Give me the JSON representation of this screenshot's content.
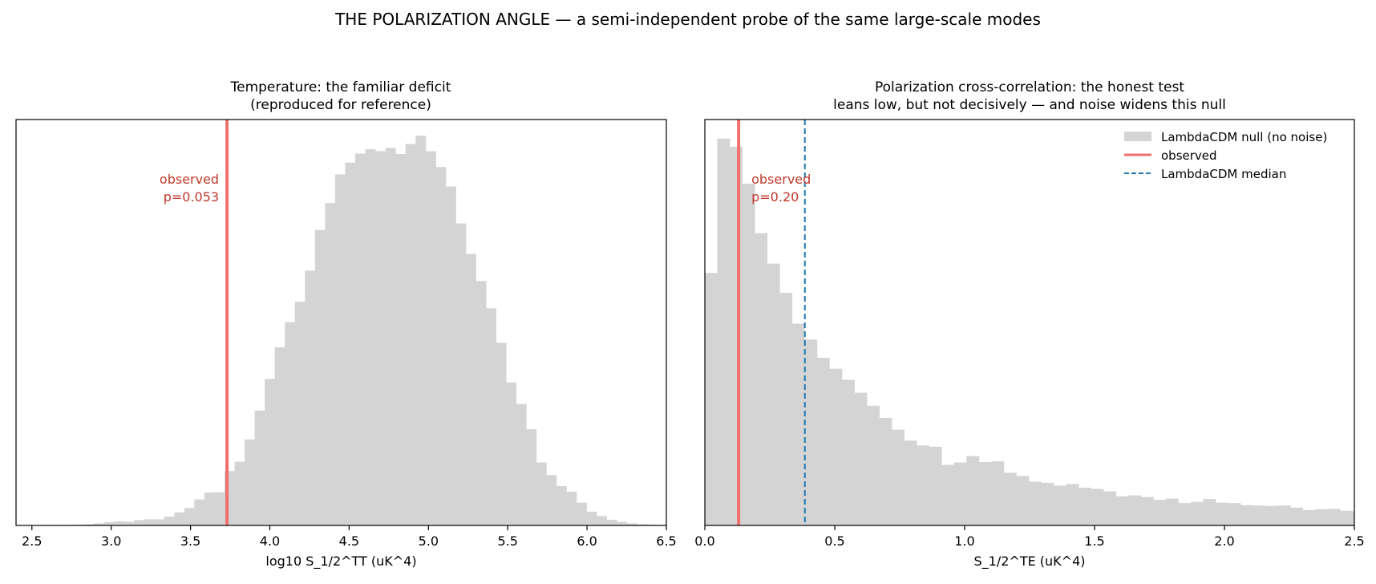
{
  "figure": {
    "suptitle": "THE POLARIZATION ANGLE — a semi-independent probe of the same large-scale modes"
  },
  "colors": {
    "bars": "#d4d4d4",
    "observed": "#f07070",
    "observed_text": "#c0392b",
    "median": "#1f77b4",
    "axes": "#000000"
  },
  "chart_data": [
    {
      "type": "bar",
      "title_lines": [
        "Temperature: the familiar deficit",
        "(reproduced for reference)"
      ],
      "xlabel": "log10 S_1/2^TT (uK^4)",
      "ylabel": "",
      "xlim": [
        2.4,
        6.5
      ],
      "ylim": [
        0,
        1.0
      ],
      "y_ticks_shown": false,
      "xticks": [
        2.5,
        3.0,
        3.5,
        4.0,
        4.5,
        5.0,
        5.5,
        6.0,
        6.5
      ],
      "xtick_labels": [
        "2.5",
        "3.0",
        "3.5",
        "4.0",
        "4.5",
        "5.0",
        "5.5",
        "6.0",
        "6.5"
      ],
      "bin_start": 2.7,
      "bin_width": 0.0634,
      "values": [
        0.001,
        0.002,
        0.003,
        0.005,
        0.008,
        0.01,
        0.009,
        0.013,
        0.015,
        0.015,
        0.022,
        0.032,
        0.043,
        0.064,
        0.081,
        0.082,
        0.134,
        0.157,
        0.212,
        0.283,
        0.361,
        0.439,
        0.501,
        0.551,
        0.628,
        0.728,
        0.794,
        0.865,
        0.894,
        0.916,
        0.927,
        0.922,
        0.93,
        0.915,
        0.94,
        0.96,
        0.922,
        0.883,
        0.835,
        0.744,
        0.669,
        0.602,
        0.535,
        0.45,
        0.352,
        0.299,
        0.237,
        0.155,
        0.124,
        0.097,
        0.083,
        0.056,
        0.034,
        0.023,
        0.014,
        0.009,
        0.005,
        0.003,
        0.002,
        0.001
      ],
      "observed": {
        "x": 3.73,
        "label": "observed",
        "p_label": "p=0.053"
      },
      "show_legend": false
    },
    {
      "type": "bar",
      "title_lines": [
        "Polarization cross-correlation: the honest test",
        "leans low, but not decisively — and noise widens this null"
      ],
      "xlabel": "S_1/2^TE  (uK^4)",
      "ylabel": "",
      "xlim": [
        0.0,
        2.5
      ],
      "ylim": [
        0,
        1.0
      ],
      "y_ticks_shown": false,
      "xticks": [
        0.0,
        0.5,
        1.0,
        1.5,
        2.0,
        2.5
      ],
      "xtick_labels": [
        "0.0",
        "0.5",
        "1.0",
        "1.5",
        "2.0",
        "2.5"
      ],
      "bin_start": 0.0,
      "bin_width": 0.04795,
      "values": [
        0.622,
        0.953,
        0.933,
        0.842,
        0.72,
        0.645,
        0.573,
        0.497,
        0.458,
        0.413,
        0.386,
        0.359,
        0.327,
        0.295,
        0.265,
        0.236,
        0.209,
        0.197,
        0.194,
        0.149,
        0.155,
        0.171,
        0.156,
        0.158,
        0.13,
        0.122,
        0.108,
        0.105,
        0.098,
        0.102,
        0.093,
        0.09,
        0.084,
        0.072,
        0.074,
        0.07,
        0.063,
        0.066,
        0.055,
        0.058,
        0.065,
        0.056,
        0.055,
        0.05,
        0.049,
        0.048,
        0.049,
        0.044,
        0.038,
        0.04,
        0.041,
        0.036,
        0.034,
        0.033,
        0.031,
        0.033,
        0.031,
        0.028,
        0.033,
        0.026,
        0.023,
        0.025
      ],
      "observed": {
        "x": 0.13,
        "label": "observed",
        "p_label": "p=0.20"
      },
      "median": {
        "x": 0.385
      },
      "show_legend": true,
      "legend_position": "top-right",
      "legend": [
        {
          "kind": "patch",
          "label": "LambdaCDM null (no noise)"
        },
        {
          "kind": "line",
          "label": "observed"
        },
        {
          "kind": "dashed",
          "label": "LambdaCDM median"
        }
      ]
    }
  ]
}
